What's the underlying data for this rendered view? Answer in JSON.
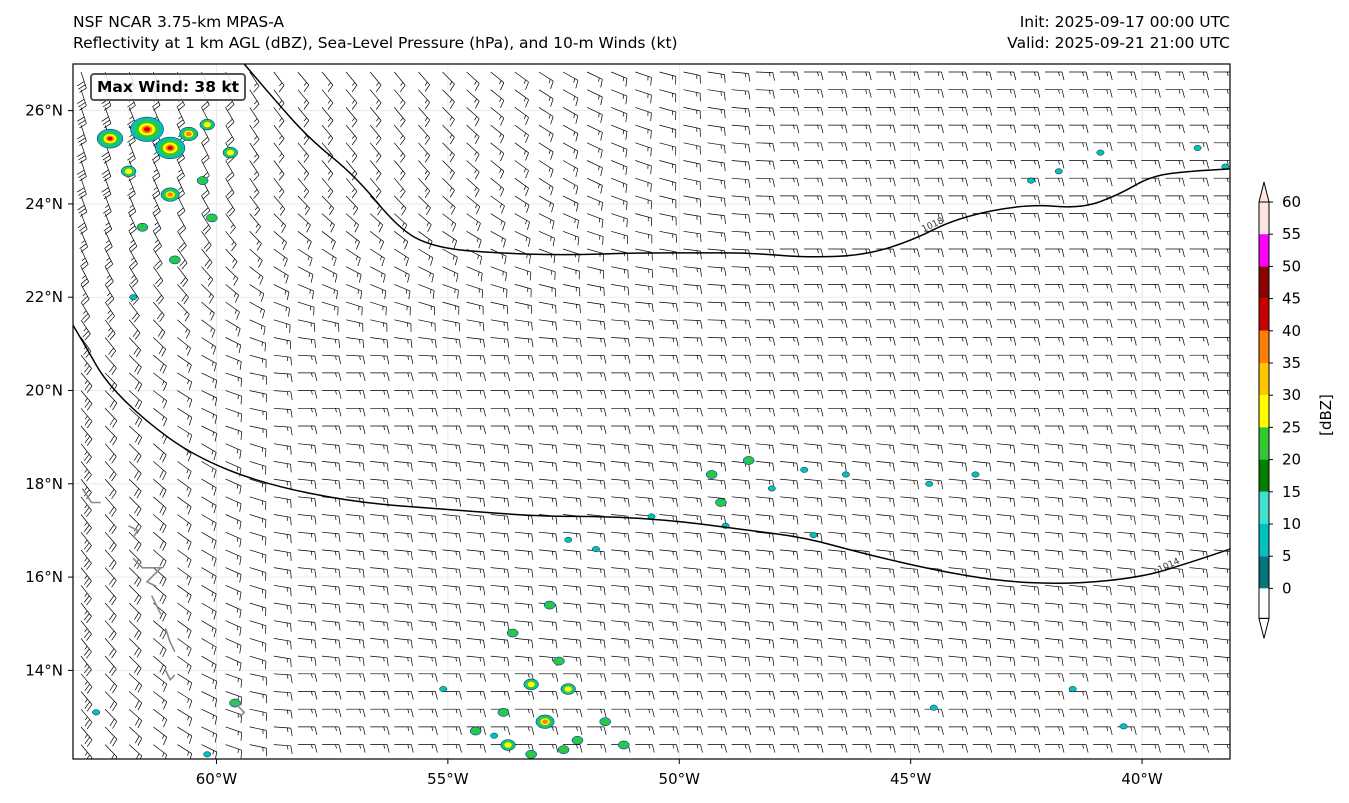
{
  "header": {
    "title_line1": "NSF NCAR 3.75-km MPAS-A",
    "title_line2": "Reflectivity at 1 km AGL (dBZ), Sea-Level Pressure (hPa), and 10-m Winds (kt)",
    "init": "Init: 2025-09-17 00:00 UTC",
    "valid": "Valid: 2025-09-21 21:00 UTC"
  },
  "annotation": {
    "max_wind": "Max Wind: 38 kt"
  },
  "map": {
    "lon_range": [
      -63.1,
      -38.1
    ],
    "lat_range": [
      12.1,
      27.0
    ],
    "lon_ticks": [
      {
        "value": -60,
        "label": "60°W"
      },
      {
        "value": -55,
        "label": "55°W"
      },
      {
        "value": -50,
        "label": "50°W"
      },
      {
        "value": -45,
        "label": "45°W"
      },
      {
        "value": -40,
        "label": "40°W"
      }
    ],
    "lat_ticks": [
      {
        "value": 26,
        "label": "26°N"
      },
      {
        "value": 24,
        "label": "24°N"
      },
      {
        "value": 22,
        "label": "22°N"
      },
      {
        "value": 20,
        "label": "20°N"
      },
      {
        "value": 18,
        "label": "18°N"
      },
      {
        "value": 16,
        "label": "16°N"
      },
      {
        "value": 14,
        "label": "14°N"
      }
    ],
    "isobars": [
      {
        "label": "1018",
        "label_at": [
          -44.5,
          23.5
        ],
        "points": [
          [
            -59.4,
            27.0
          ],
          [
            -58.8,
            26.3
          ],
          [
            -58.0,
            25.4
          ],
          [
            -57.0,
            24.6
          ],
          [
            -56.0,
            23.4
          ],
          [
            -55.2,
            23.05
          ],
          [
            -54.0,
            22.95
          ],
          [
            -52.5,
            22.9
          ],
          [
            -51.0,
            22.95
          ],
          [
            -49.5,
            22.95
          ],
          [
            -48.5,
            22.95
          ],
          [
            -47.2,
            22.85
          ],
          [
            -46.0,
            22.9
          ],
          [
            -45.0,
            23.2
          ],
          [
            -44.0,
            23.7
          ],
          [
            -42.5,
            24.0
          ],
          [
            -41.3,
            23.9
          ],
          [
            -40.5,
            24.2
          ],
          [
            -39.8,
            24.6
          ],
          [
            -39.0,
            24.7
          ],
          [
            -38.1,
            24.75
          ]
        ]
      },
      {
        "label": "1014",
        "label_at": [
          -39.4,
          16.2
        ],
        "points": [
          [
            -63.1,
            21.4
          ],
          [
            -62.8,
            20.9
          ],
          [
            -62.4,
            20.2
          ],
          [
            -61.6,
            19.4
          ],
          [
            -60.5,
            18.6
          ],
          [
            -59.0,
            18.0
          ],
          [
            -57.0,
            17.6
          ],
          [
            -55.0,
            17.45
          ],
          [
            -53.0,
            17.3
          ],
          [
            -51.5,
            17.3
          ],
          [
            -50.0,
            17.2
          ],
          [
            -48.5,
            17.0
          ],
          [
            -47.3,
            16.85
          ],
          [
            -46.0,
            16.5
          ],
          [
            -44.5,
            16.15
          ],
          [
            -43.0,
            15.9
          ],
          [
            -41.5,
            15.85
          ],
          [
            -40.0,
            16.0
          ],
          [
            -39.0,
            16.3
          ],
          [
            -38.1,
            16.6
          ]
        ]
      }
    ],
    "coastlines": [
      [
        [
          -62.9,
          17.9
        ],
        [
          -62.7,
          17.6
        ],
        [
          -62.5,
          17.6
        ]
      ],
      [
        [
          -61.9,
          17.1
        ],
        [
          -61.7,
          17.0
        ],
        [
          -61.8,
          16.85
        ]
      ],
      [
        [
          -61.8,
          16.4
        ],
        [
          -61.6,
          16.2
        ],
        [
          -61.2,
          16.2
        ],
        [
          -61.5,
          15.9
        ],
        [
          -61.3,
          15.8
        ]
      ],
      [
        [
          -61.4,
          15.6
        ],
        [
          -61.3,
          15.4
        ],
        [
          -61.2,
          15.2
        ]
      ],
      [
        [
          -61.1,
          14.9
        ],
        [
          -61.0,
          14.6
        ],
        [
          -60.9,
          14.4
        ]
      ],
      [
        [
          -61.1,
          14.0
        ],
        [
          -61.0,
          13.8
        ],
        [
          -60.9,
          13.9
        ]
      ],
      [
        [
          -59.6,
          13.3
        ],
        [
          -59.4,
          13.1
        ],
        [
          -59.5,
          13.0
        ]
      ]
    ],
    "storm_cells": [
      [
        -62.3,
        25.4,
        7
      ],
      [
        -61.5,
        25.6,
        9
      ],
      [
        -61.0,
        25.2,
        8
      ],
      [
        -60.6,
        25.5,
        5
      ],
      [
        -60.2,
        25.7,
        4
      ],
      [
        -59.7,
        25.1,
        4
      ],
      [
        -61.9,
        24.7,
        4
      ],
      [
        -61.0,
        24.2,
        5
      ],
      [
        -60.3,
        24.5,
        3
      ],
      [
        -60.1,
        23.7,
        3
      ],
      [
        -61.6,
        23.5,
        3
      ],
      [
        -60.9,
        22.8,
        3
      ],
      [
        -61.8,
        22.0,
        2
      ],
      [
        -48.5,
        18.5,
        3
      ],
      [
        -49.3,
        18.2,
        3
      ],
      [
        -48.0,
        17.9,
        2
      ],
      [
        -49.1,
        17.6,
        3
      ],
      [
        -47.3,
        18.3,
        2
      ],
      [
        -46.4,
        18.2,
        2
      ],
      [
        -44.6,
        18.0,
        2
      ],
      [
        -43.6,
        18.2,
        2
      ],
      [
        -49.0,
        17.1,
        2
      ],
      [
        -47.1,
        16.9,
        2
      ],
      [
        -50.6,
        17.3,
        2
      ],
      [
        -52.4,
        16.8,
        2
      ],
      [
        -51.8,
        16.6,
        2
      ],
      [
        -52.8,
        15.4,
        3
      ],
      [
        -53.6,
        14.8,
        3
      ],
      [
        -52.6,
        14.2,
        3
      ],
      [
        -53.2,
        13.7,
        4
      ],
      [
        -52.4,
        13.6,
        4
      ],
      [
        -53.8,
        13.1,
        3
      ],
      [
        -52.9,
        12.9,
        5
      ],
      [
        -52.2,
        12.5,
        3
      ],
      [
        -54.4,
        12.7,
        3
      ],
      [
        -53.7,
        12.4,
        4
      ],
      [
        -53.2,
        12.2,
        3
      ],
      [
        -52.5,
        12.3,
        3
      ],
      [
        -51.6,
        12.9,
        3
      ],
      [
        -51.2,
        12.4,
        3
      ],
      [
        -54.0,
        12.6,
        2
      ],
      [
        -59.6,
        13.3,
        3
      ],
      [
        -60.2,
        12.2,
        2
      ],
      [
        -62.6,
        13.1,
        2
      ],
      [
        -55.1,
        13.6,
        2
      ],
      [
        -41.8,
        24.7,
        2
      ],
      [
        -42.4,
        24.5,
        2
      ],
      [
        -40.9,
        25.1,
        2
      ],
      [
        -38.8,
        25.2,
        2
      ],
      [
        -38.2,
        24.8,
        2
      ],
      [
        -44.5,
        13.2,
        2
      ],
      [
        -41.5,
        13.6,
        2
      ],
      [
        -40.4,
        12.8,
        2
      ]
    ]
  },
  "colorbar": {
    "label": "[dBZ]",
    "levels": [
      "0",
      "5",
      "10",
      "15",
      "20",
      "25",
      "30",
      "35",
      "40",
      "45",
      "50",
      "55",
      "60"
    ],
    "colors": [
      "#ffffff",
      "#00777b",
      "#00c0c0",
      "#40e0d0",
      "#008000",
      "#32c832",
      "#ffff00",
      "#ffc800",
      "#ff7f00",
      "#c80000",
      "#8b0000",
      "#ff00ff",
      "#ffe4e1"
    ]
  }
}
